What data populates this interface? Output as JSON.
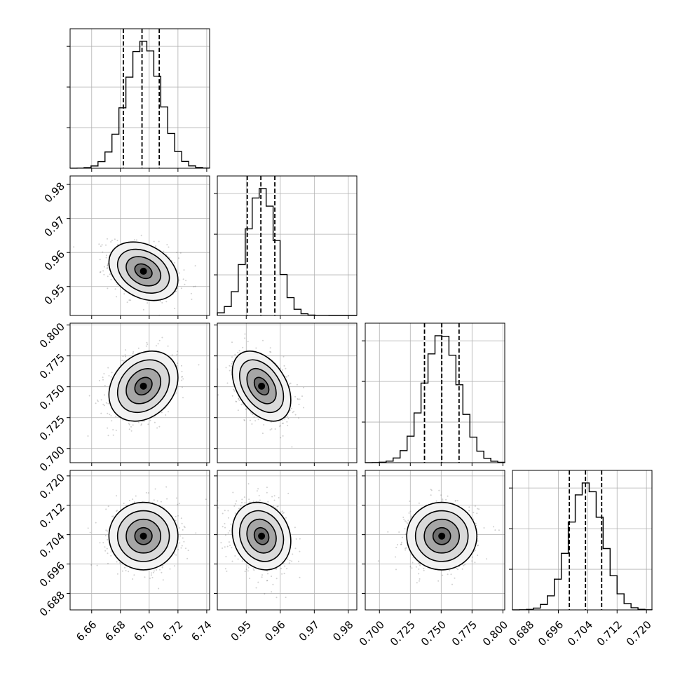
{
  "chart_data": {
    "type": "corner",
    "grid": true,
    "parameters": [
      {
        "index": 0,
        "range": [
          6.645,
          6.742
        ],
        "ticks": [
          6.66,
          6.68,
          6.7,
          6.72,
          6.74
        ],
        "tick_labels": [
          "6.66",
          "6.68",
          "6.70",
          "6.72",
          "6.74"
        ],
        "mean": 6.696,
        "sd": 0.012,
        "quantiles": [
          6.682,
          6.695,
          6.707
        ]
      },
      {
        "index": 1,
        "range": [
          0.9415,
          0.9825
        ],
        "ticks": [
          0.95,
          0.96,
          0.97,
          0.98
        ],
        "tick_labels": [
          "0.95",
          "0.96",
          "0.97",
          "0.98"
        ],
        "mean": 0.9545,
        "sd": 0.0043,
        "quantiles": [
          0.9503,
          0.9543,
          0.9584
        ]
      },
      {
        "index": 2,
        "range": [
          0.6885,
          0.8015
        ],
        "ticks": [
          0.7,
          0.725,
          0.75,
          0.775,
          0.8
        ],
        "tick_labels": [
          "0.700",
          "0.725",
          "0.750",
          "0.775",
          "0.800"
        ],
        "mean": 0.7505,
        "sd": 0.0142,
        "quantiles": [
          0.7365,
          0.7505,
          0.7645
        ]
      },
      {
        "index": 3,
        "range": [
          0.6835,
          0.7215
        ],
        "ticks": [
          0.688,
          0.696,
          0.704,
          0.712,
          0.72
        ],
        "tick_labels": [
          "0.688",
          "0.696",
          "0.704",
          "0.712",
          "0.720"
        ],
        "mean": 0.7036,
        "sd": 0.0046,
        "quantiles": [
          0.699,
          0.7034,
          0.7078
        ]
      }
    ],
    "correlations": [
      {
        "pair": [
          0,
          1
        ],
        "rho": -0.3
      },
      {
        "pair": [
          0,
          2
        ],
        "rho": 0.25
      },
      {
        "pair": [
          0,
          3
        ],
        "rho": 0.0
      },
      {
        "pair": [
          1,
          2
        ],
        "rho": -0.4
      },
      {
        "pair": [
          1,
          3
        ],
        "rho": -0.15
      },
      {
        "pair": [
          2,
          3
        ],
        "rho": 0.0
      }
    ],
    "histogram_bins": 20,
    "contour_levels_sigma": [
      0.5,
      1.0,
      1.5,
      2.0
    ],
    "colors": {
      "line": "#000000",
      "points": "#555555",
      "grid": "#b0b0b0"
    }
  }
}
